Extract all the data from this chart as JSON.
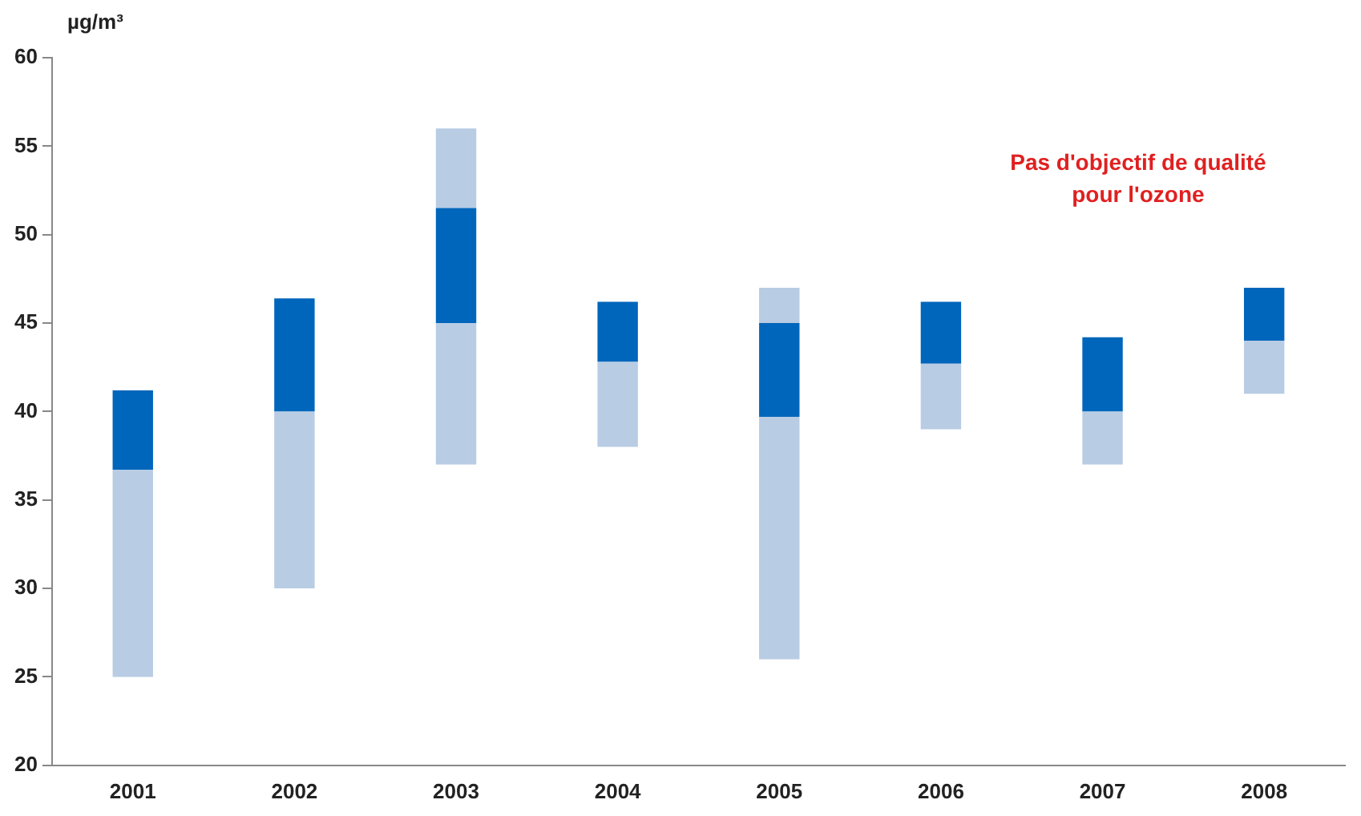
{
  "chart_data": {
    "type": "bar",
    "ylabel": "µg/m³",
    "categories": [
      "2001",
      "2002",
      "2003",
      "2004",
      "2005",
      "2006",
      "2007",
      "2008"
    ],
    "series": [
      {
        "color": "#b8cce4",
        "base": [
          25,
          30,
          37,
          38,
          26,
          39,
          37,
          41
        ],
        "values": [
          11.7,
          10,
          8,
          4.8,
          13.7,
          3.7,
          3,
          3
        ]
      },
      {
        "color": "#0066bb",
        "base": [
          36.7,
          40,
          45,
          42.8,
          39.7,
          42.7,
          40,
          44
        ],
        "values": [
          4.5,
          6.4,
          6.5,
          3.4,
          5.3,
          3.5,
          4.2,
          3
        ]
      },
      {
        "color": "#b8cce4",
        "base": [
          null,
          null,
          51.5,
          null,
          45,
          null,
          null,
          null
        ],
        "values": [
          null,
          null,
          4.5,
          null,
          2,
          null,
          null,
          null
        ]
      }
    ],
    "ylim": [
      20,
      60
    ],
    "yticks": [
      20,
      25,
      30,
      35,
      40,
      45,
      50,
      55,
      60
    ],
    "grid": false,
    "legend": false,
    "annotations": [
      "Pas d'objectif de qualité\npour l'ozone"
    ]
  }
}
